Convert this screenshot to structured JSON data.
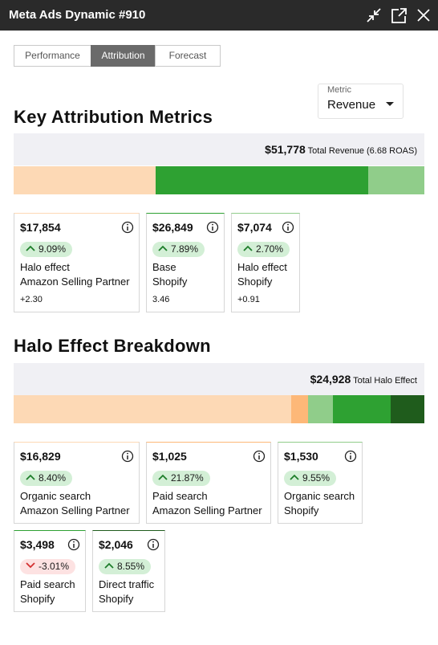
{
  "header": {
    "title": "Meta Ads Dynamic #910"
  },
  "tabs": [
    {
      "label": "Performance"
    },
    {
      "label": "Attribution",
      "active": true
    },
    {
      "label": "Forecast"
    }
  ],
  "metric": {
    "label": "Metric",
    "value": "Revenue"
  },
  "sections": [
    {
      "title": "Key Attribution Metrics",
      "total": {
        "value": 51778,
        "label": "$51,778"
      },
      "total_caption": "Total Revenue (6.68 ROAS)",
      "cards": [
        {
          "amount": {
            "value": 17854,
            "label": "$17,854"
          },
          "change": "9.09%",
          "direction": "up",
          "lines": [
            "Halo effect",
            "Amazon Selling Partner"
          ],
          "note": "+2.30",
          "color": "#fdd9b5"
        },
        {
          "amount": {
            "value": 26849,
            "label": "$26,849"
          },
          "change": "7.89%",
          "direction": "up",
          "lines": [
            "Base",
            "Shopify"
          ],
          "note": "3.46",
          "color": "#2ea132"
        },
        {
          "amount": {
            "value": 7074,
            "label": "$7,074"
          },
          "change": "2.70%",
          "direction": "up",
          "lines": [
            "Halo effect",
            "Shopify"
          ],
          "note": "+0.91",
          "color": "#90cd8a"
        }
      ]
    },
    {
      "title": "Halo Effect Breakdown",
      "total": {
        "value": 24928,
        "label": "$24,928"
      },
      "total_caption": "Total Halo Effect",
      "cards": [
        {
          "amount": {
            "value": 16829,
            "label": "$16,829"
          },
          "change": "8.40%",
          "direction": "up",
          "lines": [
            "Organic search",
            "Amazon Selling Partner"
          ],
          "color": "#fdd9b5"
        },
        {
          "amount": {
            "value": 1025,
            "label": "$1,025"
          },
          "change": "21.87%",
          "direction": "up",
          "lines": [
            "Paid search",
            "Amazon Selling Partner"
          ],
          "color": "#fdb878"
        },
        {
          "amount": {
            "value": 1530,
            "label": "$1,530"
          },
          "change": "9.55%",
          "direction": "up",
          "lines": [
            "Organic search",
            "Shopify"
          ],
          "color": "#90cd8a"
        },
        {
          "amount": {
            "value": 3498,
            "label": "$3,498"
          },
          "change": "-3.01%",
          "direction": "down",
          "lines": [
            "Paid search",
            "Shopify"
          ],
          "color": "#2ea132"
        },
        {
          "amount": {
            "value": 2046,
            "label": "$2,046"
          },
          "change": "8.55%",
          "direction": "up",
          "lines": [
            "Direct traffic",
            "Shopify"
          ],
          "color": "#1f5c1c"
        }
      ]
    }
  ]
}
